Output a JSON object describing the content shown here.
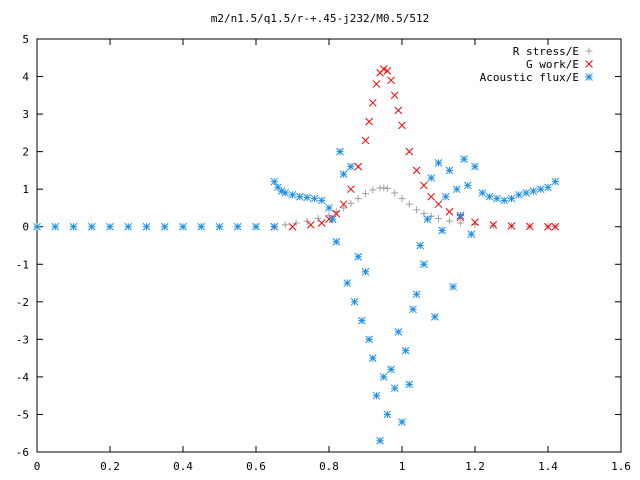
{
  "chart_data": {
    "type": "scatter",
    "title": "m2/n1.5/q1.5/r-+.45-j232/M0.5/512",
    "xlabel": "",
    "ylabel": "",
    "xlim": [
      0,
      1.6
    ],
    "ylim": [
      -6,
      5
    ],
    "x_ticks": [
      "0",
      "0.2",
      "0.4",
      "0.6",
      "0.8",
      "1",
      "1.2",
      "1.4",
      "1.6"
    ],
    "y_ticks": [
      "5",
      "4",
      "3",
      "2",
      "1",
      "0",
      "-1",
      "-2",
      "-3",
      "-4",
      "-5",
      "-6"
    ],
    "legend_position": "top-right",
    "grid": false,
    "series": [
      {
        "name": "R stress/E",
        "marker": "plus",
        "color": "#a0a0a0",
        "x": [
          0.65,
          0.68,
          0.71,
          0.74,
          0.77,
          0.8,
          0.82,
          0.84,
          0.86,
          0.88,
          0.9,
          0.92,
          0.94,
          0.95,
          0.96,
          0.98,
          1.0,
          1.02,
          1.04,
          1.06,
          1.08,
          1.1,
          1.13,
          1.16,
          1.2,
          1.25,
          1.3,
          1.35,
          1.4,
          1.42
        ],
        "y": [
          0.0,
          0.05,
          0.1,
          0.15,
          0.22,
          0.3,
          0.4,
          0.5,
          0.62,
          0.75,
          0.88,
          0.98,
          1.03,
          1.04,
          1.02,
          0.9,
          0.75,
          0.6,
          0.45,
          0.35,
          0.28,
          0.22,
          0.15,
          0.1,
          0.06,
          0.03,
          0.02,
          0.01,
          0.01,
          0.01
        ]
      },
      {
        "name": "G work/E",
        "marker": "cross",
        "color": "#ff0000",
        "x": [
          0.65,
          0.7,
          0.75,
          0.78,
          0.8,
          0.82,
          0.84,
          0.86,
          0.88,
          0.9,
          0.91,
          0.92,
          0.93,
          0.94,
          0.95,
          0.96,
          0.97,
          0.98,
          0.99,
          1.0,
          1.02,
          1.04,
          1.06,
          1.08,
          1.1,
          1.13,
          1.16,
          1.2,
          1.25,
          1.3,
          1.35,
          1.4,
          1.42
        ],
        "y": [
          0.0,
          0.0,
          0.05,
          0.1,
          0.2,
          0.35,
          0.6,
          1.0,
          1.6,
          2.3,
          2.8,
          3.3,
          3.8,
          4.1,
          4.2,
          4.15,
          3.9,
          3.5,
          3.1,
          2.7,
          2.0,
          1.5,
          1.1,
          0.8,
          0.6,
          0.4,
          0.25,
          0.12,
          0.05,
          0.02,
          0.01,
          0.0,
          0.0
        ]
      },
      {
        "name": "Acoustic flux/E",
        "marker": "star",
        "color": "#1a8fe8",
        "x": [
          0.0,
          0.05,
          0.1,
          0.15,
          0.2,
          0.25,
          0.3,
          0.35,
          0.4,
          0.45,
          0.5,
          0.55,
          0.6,
          0.65,
          0.65,
          0.66,
          0.67,
          0.68,
          0.7,
          0.72,
          0.74,
          0.76,
          0.78,
          0.8,
          0.81,
          0.82,
          0.83,
          0.84,
          0.85,
          0.86,
          0.87,
          0.88,
          0.89,
          0.9,
          0.91,
          0.92,
          0.93,
          0.94,
          0.95,
          0.96,
          0.97,
          0.98,
          0.99,
          1.0,
          1.01,
          1.02,
          1.03,
          1.04,
          1.05,
          1.06,
          1.07,
          1.08,
          1.09,
          1.1,
          1.11,
          1.12,
          1.13,
          1.14,
          1.15,
          1.16,
          1.17,
          1.18,
          1.19,
          1.2,
          1.22,
          1.24,
          1.26,
          1.28,
          1.3,
          1.32,
          1.34,
          1.36,
          1.38,
          1.4,
          1.42
        ],
        "y": [
          0.0,
          0.0,
          0.0,
          0.0,
          0.0,
          0.0,
          0.0,
          0.0,
          0.0,
          0.0,
          0.0,
          0.0,
          0.0,
          0.0,
          1.2,
          1.05,
          0.95,
          0.9,
          0.85,
          0.8,
          0.78,
          0.75,
          0.7,
          0.5,
          0.2,
          -0.4,
          2.0,
          1.4,
          -1.5,
          1.6,
          -2.0,
          -0.8,
          -2.5,
          -1.2,
          -3.0,
          -3.5,
          -4.5,
          -5.7,
          -4.0,
          -5.0,
          -3.8,
          -4.3,
          -2.8,
          -5.2,
          -3.3,
          -4.2,
          -2.2,
          -1.8,
          -0.5,
          -1.0,
          0.2,
          1.3,
          -2.4,
          1.7,
          -0.1,
          0.8,
          1.5,
          -1.6,
          1.0,
          0.3,
          1.8,
          1.1,
          -0.2,
          1.6,
          0.9,
          0.8,
          0.75,
          0.7,
          0.75,
          0.85,
          0.9,
          0.95,
          1.0,
          1.05,
          1.2
        ]
      }
    ]
  }
}
